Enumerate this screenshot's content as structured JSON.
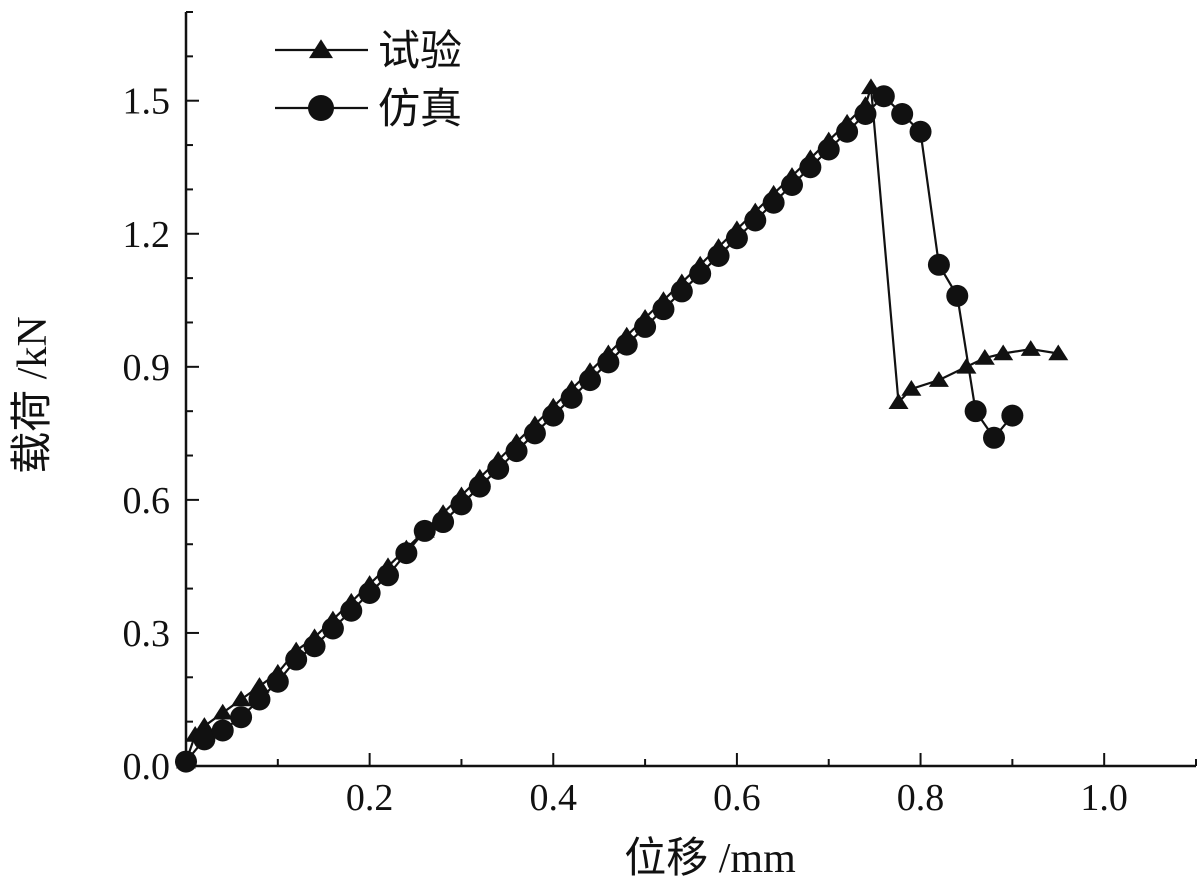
{
  "chart_data": {
    "type": "line",
    "xlabel": "位移 /mm",
    "ylabel": "载荷 /kN",
    "xlim": [
      0,
      1.1
    ],
    "ylim": [
      0,
      1.7
    ],
    "x_ticks": [
      0.2,
      0.4,
      0.6,
      0.8,
      1.0
    ],
    "x_tick_labels": [
      "0.2",
      "0.4",
      "0.6",
      "0.8",
      "1.0"
    ],
    "y_ticks": [
      0.0,
      0.3,
      0.6,
      0.9,
      1.2,
      1.5
    ],
    "y_tick_labels": [
      "0.0",
      "0.3",
      "0.6",
      "0.9",
      "1.2",
      "1.5"
    ],
    "grid": false,
    "legend_position": "top-left",
    "colors": {
      "line": "#111111",
      "marker": "#111111"
    },
    "series": [
      {
        "name": "试验",
        "marker": "triangle",
        "points": [
          [
            0.0,
            0.01
          ],
          [
            0.01,
            0.07
          ],
          [
            0.02,
            0.09
          ],
          [
            0.04,
            0.12
          ],
          [
            0.06,
            0.15
          ],
          [
            0.08,
            0.18
          ],
          [
            0.1,
            0.21
          ],
          [
            0.12,
            0.26
          ],
          [
            0.14,
            0.29
          ],
          [
            0.16,
            0.33
          ],
          [
            0.18,
            0.37
          ],
          [
            0.2,
            0.41
          ],
          [
            0.22,
            0.45
          ],
          [
            0.24,
            0.49
          ],
          [
            0.26,
            0.53
          ],
          [
            0.28,
            0.57
          ],
          [
            0.3,
            0.61
          ],
          [
            0.32,
            0.65
          ],
          [
            0.34,
            0.69
          ],
          [
            0.36,
            0.73
          ],
          [
            0.38,
            0.77
          ],
          [
            0.4,
            0.81
          ],
          [
            0.42,
            0.85
          ],
          [
            0.44,
            0.89
          ],
          [
            0.46,
            0.93
          ],
          [
            0.48,
            0.97
          ],
          [
            0.5,
            1.01
          ],
          [
            0.52,
            1.05
          ],
          [
            0.54,
            1.09
          ],
          [
            0.56,
            1.13
          ],
          [
            0.58,
            1.17
          ],
          [
            0.6,
            1.21
          ],
          [
            0.62,
            1.25
          ],
          [
            0.64,
            1.29
          ],
          [
            0.66,
            1.33
          ],
          [
            0.68,
            1.37
          ],
          [
            0.7,
            1.41
          ],
          [
            0.72,
            1.45
          ],
          [
            0.74,
            1.49
          ],
          [
            0.746,
            1.53
          ],
          [
            0.776,
            0.82
          ],
          [
            0.79,
            0.85
          ],
          [
            0.82,
            0.87
          ],
          [
            0.85,
            0.9
          ],
          [
            0.87,
            0.92
          ],
          [
            0.89,
            0.93
          ],
          [
            0.92,
            0.94
          ],
          [
            0.95,
            0.93
          ]
        ]
      },
      {
        "name": "仿真",
        "marker": "circle",
        "points": [
          [
            0.0,
            0.01
          ],
          [
            0.02,
            0.06
          ],
          [
            0.04,
            0.08
          ],
          [
            0.06,
            0.11
          ],
          [
            0.08,
            0.15
          ],
          [
            0.1,
            0.19
          ],
          [
            0.12,
            0.24
          ],
          [
            0.14,
            0.27
          ],
          [
            0.16,
            0.31
          ],
          [
            0.18,
            0.35
          ],
          [
            0.2,
            0.39
          ],
          [
            0.22,
            0.43
          ],
          [
            0.24,
            0.48
          ],
          [
            0.26,
            0.53
          ],
          [
            0.28,
            0.55
          ],
          [
            0.3,
            0.59
          ],
          [
            0.32,
            0.63
          ],
          [
            0.34,
            0.67
          ],
          [
            0.36,
            0.71
          ],
          [
            0.38,
            0.75
          ],
          [
            0.4,
            0.79
          ],
          [
            0.42,
            0.83
          ],
          [
            0.44,
            0.87
          ],
          [
            0.46,
            0.91
          ],
          [
            0.48,
            0.95
          ],
          [
            0.5,
            0.99
          ],
          [
            0.52,
            1.03
          ],
          [
            0.54,
            1.07
          ],
          [
            0.56,
            1.11
          ],
          [
            0.58,
            1.15
          ],
          [
            0.6,
            1.19
          ],
          [
            0.62,
            1.23
          ],
          [
            0.64,
            1.27
          ],
          [
            0.66,
            1.31
          ],
          [
            0.68,
            1.35
          ],
          [
            0.7,
            1.39
          ],
          [
            0.72,
            1.43
          ],
          [
            0.74,
            1.47
          ],
          [
            0.76,
            1.51
          ],
          [
            0.78,
            1.47
          ],
          [
            0.8,
            1.43
          ],
          [
            0.82,
            1.13
          ],
          [
            0.84,
            1.06
          ],
          [
            0.86,
            0.8
          ],
          [
            0.88,
            0.74
          ],
          [
            0.9,
            0.79
          ]
        ]
      }
    ]
  }
}
